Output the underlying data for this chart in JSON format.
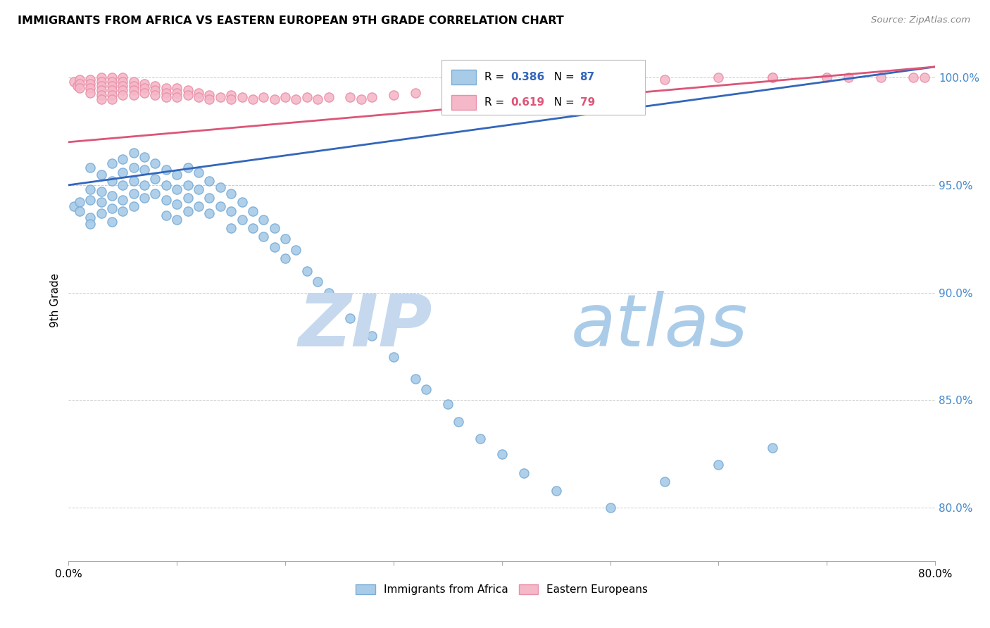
{
  "title": "IMMIGRANTS FROM AFRICA VS EASTERN EUROPEAN 9TH GRADE CORRELATION CHART",
  "source": "Source: ZipAtlas.com",
  "ylabel": "9th Grade",
  "ytick_labels": [
    "80.0%",
    "85.0%",
    "90.0%",
    "95.0%",
    "100.0%"
  ],
  "ytick_values": [
    0.8,
    0.85,
    0.9,
    0.95,
    1.0
  ],
  "xmin": 0.0,
  "xmax": 0.8,
  "ymin": 0.775,
  "ymax": 1.018,
  "legend1_label": "Immigrants from Africa",
  "legend2_label": "Eastern Europeans",
  "r_africa": 0.386,
  "n_africa": 87,
  "r_eastern": 0.619,
  "n_eastern": 79,
  "africa_color": "#A8CBE8",
  "africa_edge": "#7BADD6",
  "eastern_color": "#F5B8C8",
  "eastern_edge": "#E890AA",
  "trend_africa_color": "#3366BB",
  "trend_eastern_color": "#DD5577",
  "watermark_zip_color": "#C5D8EE",
  "watermark_atlas_color": "#AACCE8",
  "africa_scatter_x": [
    0.005,
    0.01,
    0.01,
    0.02,
    0.02,
    0.02,
    0.02,
    0.02,
    0.03,
    0.03,
    0.03,
    0.03,
    0.04,
    0.04,
    0.04,
    0.04,
    0.04,
    0.05,
    0.05,
    0.05,
    0.05,
    0.05,
    0.06,
    0.06,
    0.06,
    0.06,
    0.06,
    0.07,
    0.07,
    0.07,
    0.07,
    0.08,
    0.08,
    0.08,
    0.09,
    0.09,
    0.09,
    0.09,
    0.1,
    0.1,
    0.1,
    0.1,
    0.11,
    0.11,
    0.11,
    0.11,
    0.12,
    0.12,
    0.12,
    0.13,
    0.13,
    0.13,
    0.14,
    0.14,
    0.15,
    0.15,
    0.15,
    0.16,
    0.16,
    0.17,
    0.17,
    0.18,
    0.18,
    0.19,
    0.19,
    0.2,
    0.2,
    0.21,
    0.22,
    0.23,
    0.24,
    0.25,
    0.26,
    0.28,
    0.3,
    0.32,
    0.33,
    0.35,
    0.36,
    0.38,
    0.4,
    0.42,
    0.45,
    0.5,
    0.55,
    0.6,
    0.65
  ],
  "africa_scatter_y": [
    0.94,
    0.942,
    0.938,
    0.958,
    0.948,
    0.943,
    0.935,
    0.932,
    0.955,
    0.947,
    0.942,
    0.937,
    0.96,
    0.952,
    0.945,
    0.939,
    0.933,
    0.962,
    0.956,
    0.95,
    0.943,
    0.938,
    0.965,
    0.958,
    0.952,
    0.946,
    0.94,
    0.963,
    0.957,
    0.95,
    0.944,
    0.96,
    0.953,
    0.946,
    0.957,
    0.95,
    0.943,
    0.936,
    0.955,
    0.948,
    0.941,
    0.934,
    0.958,
    0.95,
    0.944,
    0.938,
    0.956,
    0.948,
    0.94,
    0.952,
    0.944,
    0.937,
    0.949,
    0.94,
    0.946,
    0.938,
    0.93,
    0.942,
    0.934,
    0.938,
    0.93,
    0.934,
    0.926,
    0.93,
    0.921,
    0.925,
    0.916,
    0.92,
    0.91,
    0.905,
    0.9,
    0.895,
    0.888,
    0.88,
    0.87,
    0.86,
    0.855,
    0.848,
    0.84,
    0.832,
    0.825,
    0.816,
    0.808,
    0.8,
    0.812,
    0.82,
    0.828
  ],
  "eastern_scatter_x": [
    0.005,
    0.008,
    0.01,
    0.01,
    0.01,
    0.02,
    0.02,
    0.02,
    0.02,
    0.03,
    0.03,
    0.03,
    0.03,
    0.03,
    0.03,
    0.04,
    0.04,
    0.04,
    0.04,
    0.04,
    0.04,
    0.05,
    0.05,
    0.05,
    0.05,
    0.05,
    0.06,
    0.06,
    0.06,
    0.06,
    0.07,
    0.07,
    0.07,
    0.08,
    0.08,
    0.08,
    0.09,
    0.09,
    0.09,
    0.1,
    0.1,
    0.1,
    0.11,
    0.11,
    0.12,
    0.12,
    0.13,
    0.13,
    0.14,
    0.15,
    0.15,
    0.16,
    0.17,
    0.18,
    0.19,
    0.2,
    0.21,
    0.22,
    0.23,
    0.24,
    0.26,
    0.27,
    0.28,
    0.3,
    0.32,
    0.35,
    0.37,
    0.4,
    0.44,
    0.5,
    0.55,
    0.6,
    0.65,
    0.65,
    0.7,
    0.72,
    0.75,
    0.78,
    0.79
  ],
  "eastern_scatter_y": [
    0.998,
    0.996,
    0.999,
    0.997,
    0.995,
    0.999,
    0.997,
    0.995,
    0.993,
    1.0,
    0.998,
    0.996,
    0.994,
    0.992,
    0.99,
    1.0,
    0.998,
    0.996,
    0.994,
    0.992,
    0.99,
    1.0,
    0.998,
    0.996,
    0.994,
    0.992,
    0.998,
    0.996,
    0.994,
    0.992,
    0.997,
    0.995,
    0.993,
    0.996,
    0.994,
    0.992,
    0.995,
    0.993,
    0.991,
    0.995,
    0.993,
    0.991,
    0.994,
    0.992,
    0.993,
    0.991,
    0.992,
    0.99,
    0.991,
    0.992,
    0.99,
    0.991,
    0.99,
    0.991,
    0.99,
    0.991,
    0.99,
    0.991,
    0.99,
    0.991,
    0.991,
    0.99,
    0.991,
    0.992,
    0.993,
    0.994,
    0.995,
    0.996,
    0.997,
    0.998,
    0.999,
    1.0,
    1.0,
    1.0,
    1.0,
    1.0,
    1.0,
    1.0,
    1.0
  ],
  "africa_trend_x0": 0.0,
  "africa_trend_x1": 0.8,
  "africa_trend_y0": 0.95,
  "africa_trend_y1": 1.005,
  "eastern_trend_x0": 0.0,
  "eastern_trend_x1": 0.8,
  "eastern_trend_y0": 0.97,
  "eastern_trend_y1": 1.005
}
